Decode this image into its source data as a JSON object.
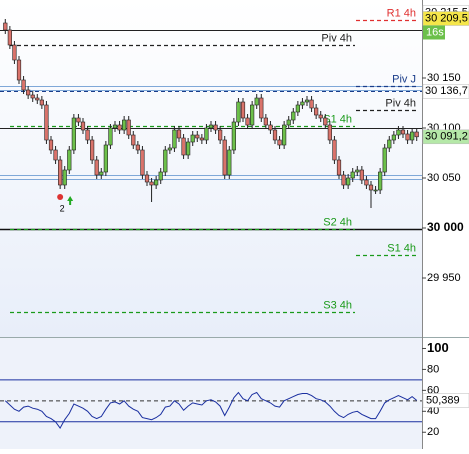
{
  "chart_data": [
    {
      "type": "candlestick",
      "ylim": [
        29891,
        30228
      ],
      "yticks": [
        {
          "value": 29950,
          "label": "29 950"
        },
        {
          "value": 30000,
          "label": "30 000"
        },
        {
          "value": 30050,
          "label": "30 050"
        },
        {
          "value": 30100,
          "label": "30 100"
        },
        {
          "value": 30150,
          "label": "30 150"
        }
      ],
      "major_tick": 30000,
      "up_color": "#6cc04a",
      "down_color": "#d9736b",
      "candles": [
        [
          30205,
          30209,
          30194,
          30198
        ],
        [
          30198,
          30202,
          30179,
          30183
        ],
        [
          30183,
          30187,
          30164,
          30168
        ],
        [
          30168,
          30172,
          30144,
          30148
        ],
        [
          30148,
          30152,
          30134,
          30138
        ],
        [
          30138,
          30142,
          30129,
          30133
        ],
        [
          30133,
          30137,
          30126,
          30130
        ],
        [
          30130,
          30134,
          30124,
          30128
        ],
        [
          30128,
          30132,
          30119,
          30123
        ],
        [
          30123,
          30127,
          30084,
          30088
        ],
        [
          30088,
          30092,
          30074,
          30078
        ],
        [
          30078,
          30082,
          30064,
          30068
        ],
        [
          30068,
          30072,
          30039,
          30043
        ],
        [
          30043,
          30062,
          30039,
          30058
        ],
        [
          30058,
          30082,
          30054,
          30078
        ],
        [
          30078,
          30114,
          30074,
          30110
        ],
        [
          30110,
          30114,
          30102,
          30106
        ],
        [
          30106,
          30110,
          30094,
          30098
        ],
        [
          30098,
          30102,
          30084,
          30088
        ],
        [
          30088,
          30092,
          30064,
          30068
        ],
        [
          30068,
          30072,
          30049,
          30053
        ],
        [
          30053,
          30060,
          30049,
          30056
        ],
        [
          30056,
          30087,
          30052,
          30083
        ],
        [
          30083,
          30104,
          30079,
          30100
        ],
        [
          30100,
          30107,
          30096,
          30103
        ],
        [
          30103,
          30107,
          30094,
          30098
        ],
        [
          30098,
          30112,
          30094,
          30108
        ],
        [
          30108,
          30112,
          30089,
          30093
        ],
        [
          30093,
          30097,
          30079,
          30083
        ],
        [
          30083,
          30087,
          30074,
          30078
        ],
        [
          30078,
          30082,
          30049,
          30053
        ],
        [
          30053,
          30057,
          30042,
          30046
        ],
        [
          30046,
          30050,
          30026,
          30043
        ],
        [
          30043,
          30052,
          30039,
          30048
        ],
        [
          30048,
          30060,
          30044,
          30056
        ],
        [
          30056,
          30082,
          30052,
          30078
        ],
        [
          30078,
          30084,
          30074,
          30080
        ],
        [
          30080,
          30102,
          30076,
          30098
        ],
        [
          30098,
          30102,
          30086,
          30090
        ],
        [
          30090,
          30094,
          30069,
          30073
        ],
        [
          30073,
          30090,
          30069,
          30086
        ],
        [
          30086,
          30097,
          30082,
          30093
        ],
        [
          30093,
          30097,
          30086,
          30090
        ],
        [
          30090,
          30094,
          30084,
          30088
        ],
        [
          30088,
          30104,
          30084,
          30100
        ],
        [
          30100,
          30107,
          30096,
          30103
        ],
        [
          30103,
          30107,
          30094,
          30098
        ],
        [
          30098,
          30102,
          30084,
          30088
        ],
        [
          30088,
          30092,
          30049,
          30053
        ],
        [
          30053,
          30082,
          30049,
          30078
        ],
        [
          30078,
          30110,
          30074,
          30106
        ],
        [
          30106,
          30130,
          30102,
          30126
        ],
        [
          30126,
          30130,
          30106,
          30110
        ],
        [
          30110,
          30114,
          30099,
          30103
        ],
        [
          30103,
          30127,
          30099,
          30123
        ],
        [
          30123,
          30134,
          30119,
          30130
        ],
        [
          30130,
          30134,
          30106,
          30110
        ],
        [
          30110,
          30114,
          30099,
          30103
        ],
        [
          30103,
          30107,
          30094,
          30098
        ],
        [
          30098,
          30102,
          30084,
          30088
        ],
        [
          30088,
          30092,
          30079,
          30083
        ],
        [
          30083,
          30107,
          30079,
          30103
        ],
        [
          30103,
          30112,
          30099,
          30108
        ],
        [
          30108,
          30120,
          30104,
          30116
        ],
        [
          30116,
          30127,
          30112,
          30123
        ],
        [
          30123,
          30130,
          30119,
          30126
        ],
        [
          30126,
          30132,
          30122,
          30128
        ],
        [
          30128,
          30132,
          30116,
          30120
        ],
        [
          30120,
          30124,
          30109,
          30113
        ],
        [
          30113,
          30117,
          30106,
          30110
        ],
        [
          30110,
          30114,
          30099,
          30103
        ],
        [
          30103,
          30107,
          30084,
          30088
        ],
        [
          30088,
          30092,
          30064,
          30068
        ],
        [
          30068,
          30072,
          30049,
          30053
        ],
        [
          30053,
          30057,
          30039,
          30043
        ],
        [
          30043,
          30054,
          30039,
          30050
        ],
        [
          30050,
          30060,
          30046,
          30056
        ],
        [
          30056,
          30062,
          30052,
          30058
        ],
        [
          30058,
          30062,
          30044,
          30048
        ],
        [
          30048,
          30052,
          30039,
          30043
        ],
        [
          30043,
          30047,
          30020,
          30038
        ],
        [
          30038,
          30042,
          30034,
          30038
        ],
        [
          30038,
          30060,
          30034,
          30056
        ],
        [
          30056,
          30084,
          30052,
          30080
        ],
        [
          30080,
          30092,
          30076,
          30088
        ],
        [
          30088,
          30097,
          30084,
          30093
        ],
        [
          30093,
          30102,
          30089,
          30098
        ],
        [
          30098,
          30102,
          30090,
          30094
        ],
        [
          30094,
          30098,
          30084,
          30088
        ],
        [
          30088,
          30100,
          30084,
          30096
        ],
        [
          30096,
          30100,
          30087,
          30091.2
        ]
      ],
      "lines": [
        {
          "value": 30198,
          "color": "#222"
        },
        {
          "value": 30142,
          "color": "#7fa8d8"
        },
        {
          "value": 30138,
          "color": "#7fa8d8"
        },
        {
          "value": 30100,
          "color": "#222"
        },
        {
          "value": 30053,
          "color": "#7fa8d8"
        },
        {
          "value": 30049,
          "color": "#7fa8d8"
        },
        {
          "value": 29999,
          "color": "#111"
        }
      ],
      "levels": [
        {
          "label": "R1 4h",
          "value": 30208,
          "color": "#e03030",
          "side": "right"
        },
        {
          "label": "Piv 4h",
          "value": 30183,
          "color": "#222",
          "side": "left"
        },
        {
          "label": "Piv J",
          "value": 30142,
          "color": "#1a3d8a",
          "side": "right"
        },
        {
          "label": "Piv 4h",
          "value": 30118,
          "color": "#222",
          "side": "right"
        },
        {
          "label": "S1 4h",
          "value": 30102,
          "color": "#1a9a1a",
          "side": "left"
        },
        {
          "label": "S2 4h",
          "value": 29999,
          "color": "#1a9a1a",
          "side": "left"
        },
        {
          "label": "S1 4h",
          "value": 29973,
          "color": "#1a9a1a",
          "side": "right"
        },
        {
          "label": "S3 4h",
          "value": 29916,
          "color": "#1a9a1a",
          "side": "left"
        }
      ],
      "dashed": [
        {
          "value": 30136.7,
          "color": "#1a3d8a"
        }
      ],
      "tags": [
        {
          "value": 30215.5,
          "label": "30 215,5",
          "color": "#ffffff"
        },
        {
          "value": 30209.5,
          "label": "30 209,5",
          "color": "#f5e64a"
        },
        {
          "value": 30136.7,
          "label": "30 136,7",
          "color": "#ffffff"
        },
        {
          "value": 30091.2,
          "label": "30 091,2",
          "color": "#b5e8a8"
        }
      ],
      "countdown": "16s",
      "annotation": "2"
    },
    {
      "type": "line",
      "ylim": [
        4,
        110
      ],
      "yticks": [
        20,
        40,
        60,
        80,
        100
      ],
      "major_tick": 100,
      "levels": [
        70,
        30
      ],
      "mid": 50,
      "color": "#1a2fa0",
      "values": [
        50,
        46,
        42,
        40,
        44,
        45,
        43,
        42,
        40,
        35,
        33,
        30,
        24,
        32,
        38,
        47,
        45,
        43,
        40,
        35,
        33,
        35,
        42,
        48,
        49,
        47,
        50,
        45,
        42,
        40,
        34,
        33,
        32,
        34,
        37,
        44,
        45,
        50,
        47,
        41,
        45,
        48,
        47,
        46,
        50,
        51,
        49,
        45,
        36,
        44,
        53,
        58,
        52,
        50,
        56,
        58,
        52,
        50,
        48,
        45,
        44,
        50,
        52,
        54,
        56,
        57,
        57,
        55,
        52,
        51,
        49,
        45,
        40,
        36,
        34,
        37,
        39,
        40,
        37,
        35,
        33,
        33,
        40,
        48,
        51,
        53,
        55,
        53,
        51,
        54,
        50.389
      ],
      "tags": [
        {
          "value": 50.389,
          "label": "50,389",
          "color": "#ffffff"
        }
      ]
    }
  ]
}
